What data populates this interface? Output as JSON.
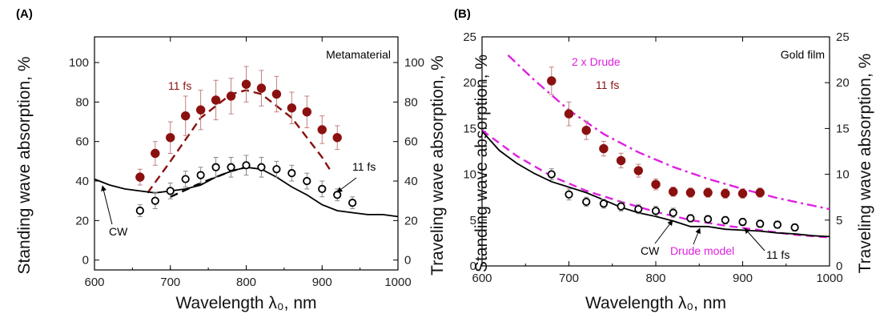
{
  "chart_data": [
    {
      "type": "scatter",
      "panel_label": "(A)",
      "box_label": "Metamaterial",
      "xlabel": "Wavelength λ₀, nm",
      "ylabel": "Standing wave absorption, %",
      "y2label": "Traveling wave absorption, %",
      "xlim": [
        600,
        1000
      ],
      "ylim": [
        -5,
        113
      ],
      "xticks": [
        600,
        700,
        800,
        900,
        1000
      ],
      "yticks": [
        0,
        20,
        40,
        60,
        80,
        100
      ],
      "annotations": [
        "11 fs",
        "11 fs",
        "CW"
      ],
      "series": [
        {
          "name": "11 fs",
          "marker": "filled-circle",
          "color": "#8b1010",
          "x": [
            660,
            680,
            700,
            720,
            740,
            760,
            780,
            800,
            820,
            840,
            860,
            880,
            900,
            920
          ],
          "y": [
            42,
            54,
            62,
            73,
            76,
            81,
            83,
            89,
            87,
            84,
            77,
            75,
            66,
            62
          ],
          "err": [
            4,
            6,
            8,
            10,
            10,
            10,
            9,
            9,
            9,
            9,
            8,
            8,
            7,
            6
          ]
        },
        {
          "name": "11 fs",
          "marker": "open-circle",
          "color": "#000000",
          "x": [
            660,
            680,
            700,
            720,
            740,
            760,
            780,
            800,
            820,
            840,
            860,
            880,
            900,
            920,
            940
          ],
          "y": [
            25,
            30,
            35,
            41,
            43,
            47,
            47,
            48,
            47,
            46,
            44,
            40,
            36,
            33,
            29
          ],
          "err": [
            3,
            4,
            4,
            4,
            4,
            5,
            5,
            5,
            5,
            4,
            4,
            4,
            4,
            3,
            3
          ]
        },
        {
          "name": "",
          "style": "dashed",
          "color": "#8b1010",
          "x": [
            670,
            700,
            740,
            780,
            800,
            820,
            860,
            900,
            910
          ],
          "y": [
            34,
            50,
            72,
            84,
            86,
            84,
            72,
            52,
            46
          ]
        },
        {
          "name": "",
          "style": "dashed",
          "color": "#000000",
          "x": [
            700,
            740,
            780,
            810
          ],
          "y": [
            32,
            39,
            45,
            48
          ]
        },
        {
          "name": "CW",
          "style": "solid",
          "color": "#000000",
          "x": [
            600,
            620,
            640,
            660,
            680,
            700,
            720,
            740,
            760,
            780,
            800,
            820,
            840,
            860,
            880,
            900,
            920,
            940,
            960,
            980,
            1000
          ],
          "y": [
            41,
            38,
            36,
            35,
            34,
            35,
            36,
            38,
            42,
            45,
            47,
            46,
            42,
            37,
            33,
            28,
            25,
            24,
            23,
            23,
            22
          ]
        }
      ]
    },
    {
      "type": "scatter",
      "panel_label": "(B)",
      "box_label": "Gold film",
      "xlabel": "Wavelength λ₀, nm",
      "ylabel": "Standing wave absorption, %",
      "y2label": "Traveling wave absorption, %",
      "xlim": [
        600,
        1000
      ],
      "ylim": [
        0,
        25
      ],
      "xticks": [
        600,
        700,
        800,
        900,
        1000
      ],
      "yticks": [
        0,
        5,
        10,
        15,
        20,
        25
      ],
      "annotations": [
        "2 x Drude",
        "11 fs",
        "CW",
        "Drude model",
        "11 fs"
      ],
      "series": [
        {
          "name": "11 fs",
          "marker": "filled-circle",
          "color": "#8b1010",
          "x": [
            680,
            700,
            720,
            740,
            760,
            780,
            800,
            820,
            840,
            860,
            880,
            900,
            920
          ],
          "y": [
            20.2,
            16.6,
            14.8,
            12.8,
            11.5,
            10.4,
            8.9,
            8.1,
            8.0,
            8.0,
            7.9,
            7.9,
            8.0
          ],
          "err": [
            1.5,
            1.3,
            1.0,
            0.8,
            0.8,
            0.7,
            0.6,
            0.5,
            0.5,
            0.5,
            0.5,
            0.5,
            0.5
          ]
        },
        {
          "name": "11 fs",
          "marker": "open-circle",
          "color": "#000000",
          "x": [
            680,
            700,
            720,
            740,
            760,
            780,
            800,
            820,
            840,
            860,
            880,
            900,
            920,
            940,
            960
          ],
          "y": [
            10.0,
            7.8,
            7.0,
            6.8,
            6.5,
            6.2,
            6.0,
            5.8,
            5.2,
            5.1,
            5.0,
            4.8,
            4.6,
            4.5,
            4.2
          ],
          "err": [
            0.6,
            0.6,
            0.5,
            0.5,
            0.5,
            0.5,
            0.5,
            0.5,
            0.4,
            0.4,
            0.4,
            0.4,
            0.4,
            0.4,
            0.4
          ]
        },
        {
          "name": "2 x Drude",
          "style": "dash-dot",
          "color": "#e020e0",
          "x": [
            630,
            660,
            700,
            740,
            780,
            820,
            860,
            900,
            940,
            980,
            1000
          ],
          "y": [
            23.0,
            20.3,
            17.0,
            14.4,
            12.4,
            10.8,
            9.5,
            8.4,
            7.4,
            6.6,
            6.2
          ]
        },
        {
          "name": "Drude model",
          "style": "dashed",
          "color": "#e020e0",
          "x": [
            600,
            640,
            680,
            720,
            760,
            800,
            840,
            880,
            920,
            960,
            1000
          ],
          "y": [
            14.8,
            12.0,
            9.8,
            8.2,
            7.0,
            5.9,
            5.0,
            4.4,
            3.9,
            3.4,
            3.1
          ]
        },
        {
          "name": "CW",
          "style": "solid",
          "color": "#000000",
          "x": [
            600,
            620,
            640,
            660,
            680,
            700,
            720,
            740,
            760,
            780,
            800,
            820,
            840,
            860,
            880,
            900,
            920,
            940,
            960,
            980,
            1000
          ],
          "y": [
            14.7,
            12.6,
            11.2,
            10.1,
            9.2,
            8.6,
            8.0,
            7.2,
            6.4,
            5.8,
            5.4,
            4.9,
            4.3,
            4.3,
            4.0,
            3.9,
            3.8,
            3.6,
            3.5,
            3.3,
            3.2
          ]
        }
      ]
    }
  ]
}
